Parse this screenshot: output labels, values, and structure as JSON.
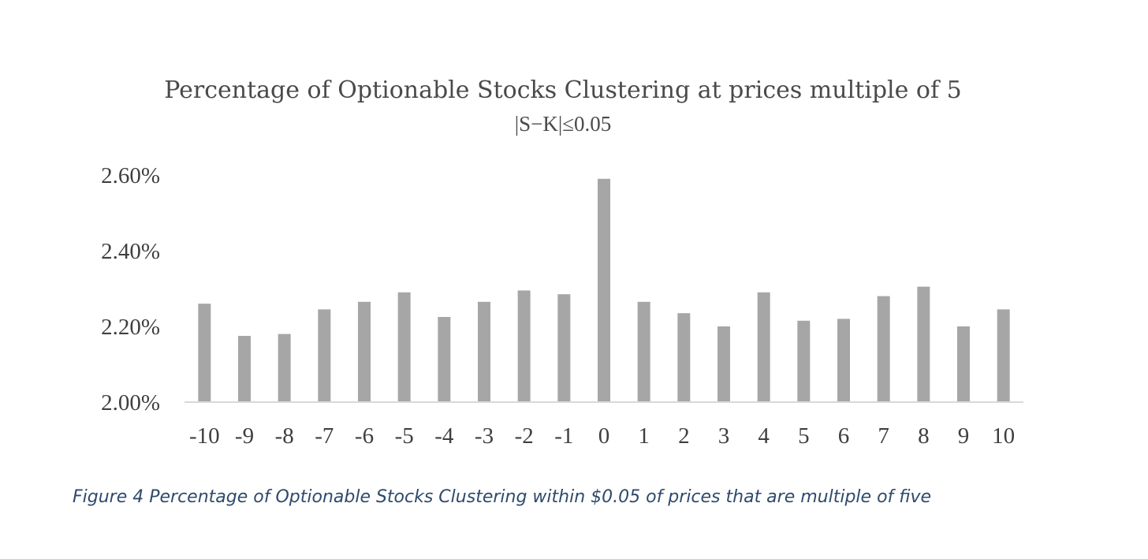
{
  "chart_data": {
    "type": "bar",
    "title": "Percentage of Optionable Stocks Clustering at prices multiple of 5",
    "subtitle": "|S−K|≤0.05",
    "categories": [
      "-10",
      "-9",
      "-8",
      "-7",
      "-6",
      "-5",
      "-4",
      "-3",
      "-2",
      "-1",
      "0",
      "1",
      "2",
      "3",
      "4",
      "5",
      "6",
      "7",
      "8",
      "9",
      "10"
    ],
    "values": [
      2.26,
      2.175,
      2.18,
      2.245,
      2.265,
      2.29,
      2.225,
      2.265,
      2.295,
      2.285,
      2.59,
      2.265,
      2.235,
      2.2,
      2.29,
      2.215,
      2.22,
      2.28,
      2.305,
      2.2,
      2.245
    ],
    "ylim": [
      2.0,
      2.6
    ],
    "yticks": [
      "2.00%",
      "2.20%",
      "2.40%",
      "2.60%"
    ],
    "ytick_values": [
      2.0,
      2.2,
      2.4,
      2.6
    ],
    "xlabel": "",
    "ylabel": "",
    "grid": false,
    "bar_color": "#a6a6a6",
    "axis_color": "#d9d9d9"
  },
  "caption": "Figure 4 Percentage of Optionable Stocks Clustering within $0.05 of prices that are multiple of five"
}
